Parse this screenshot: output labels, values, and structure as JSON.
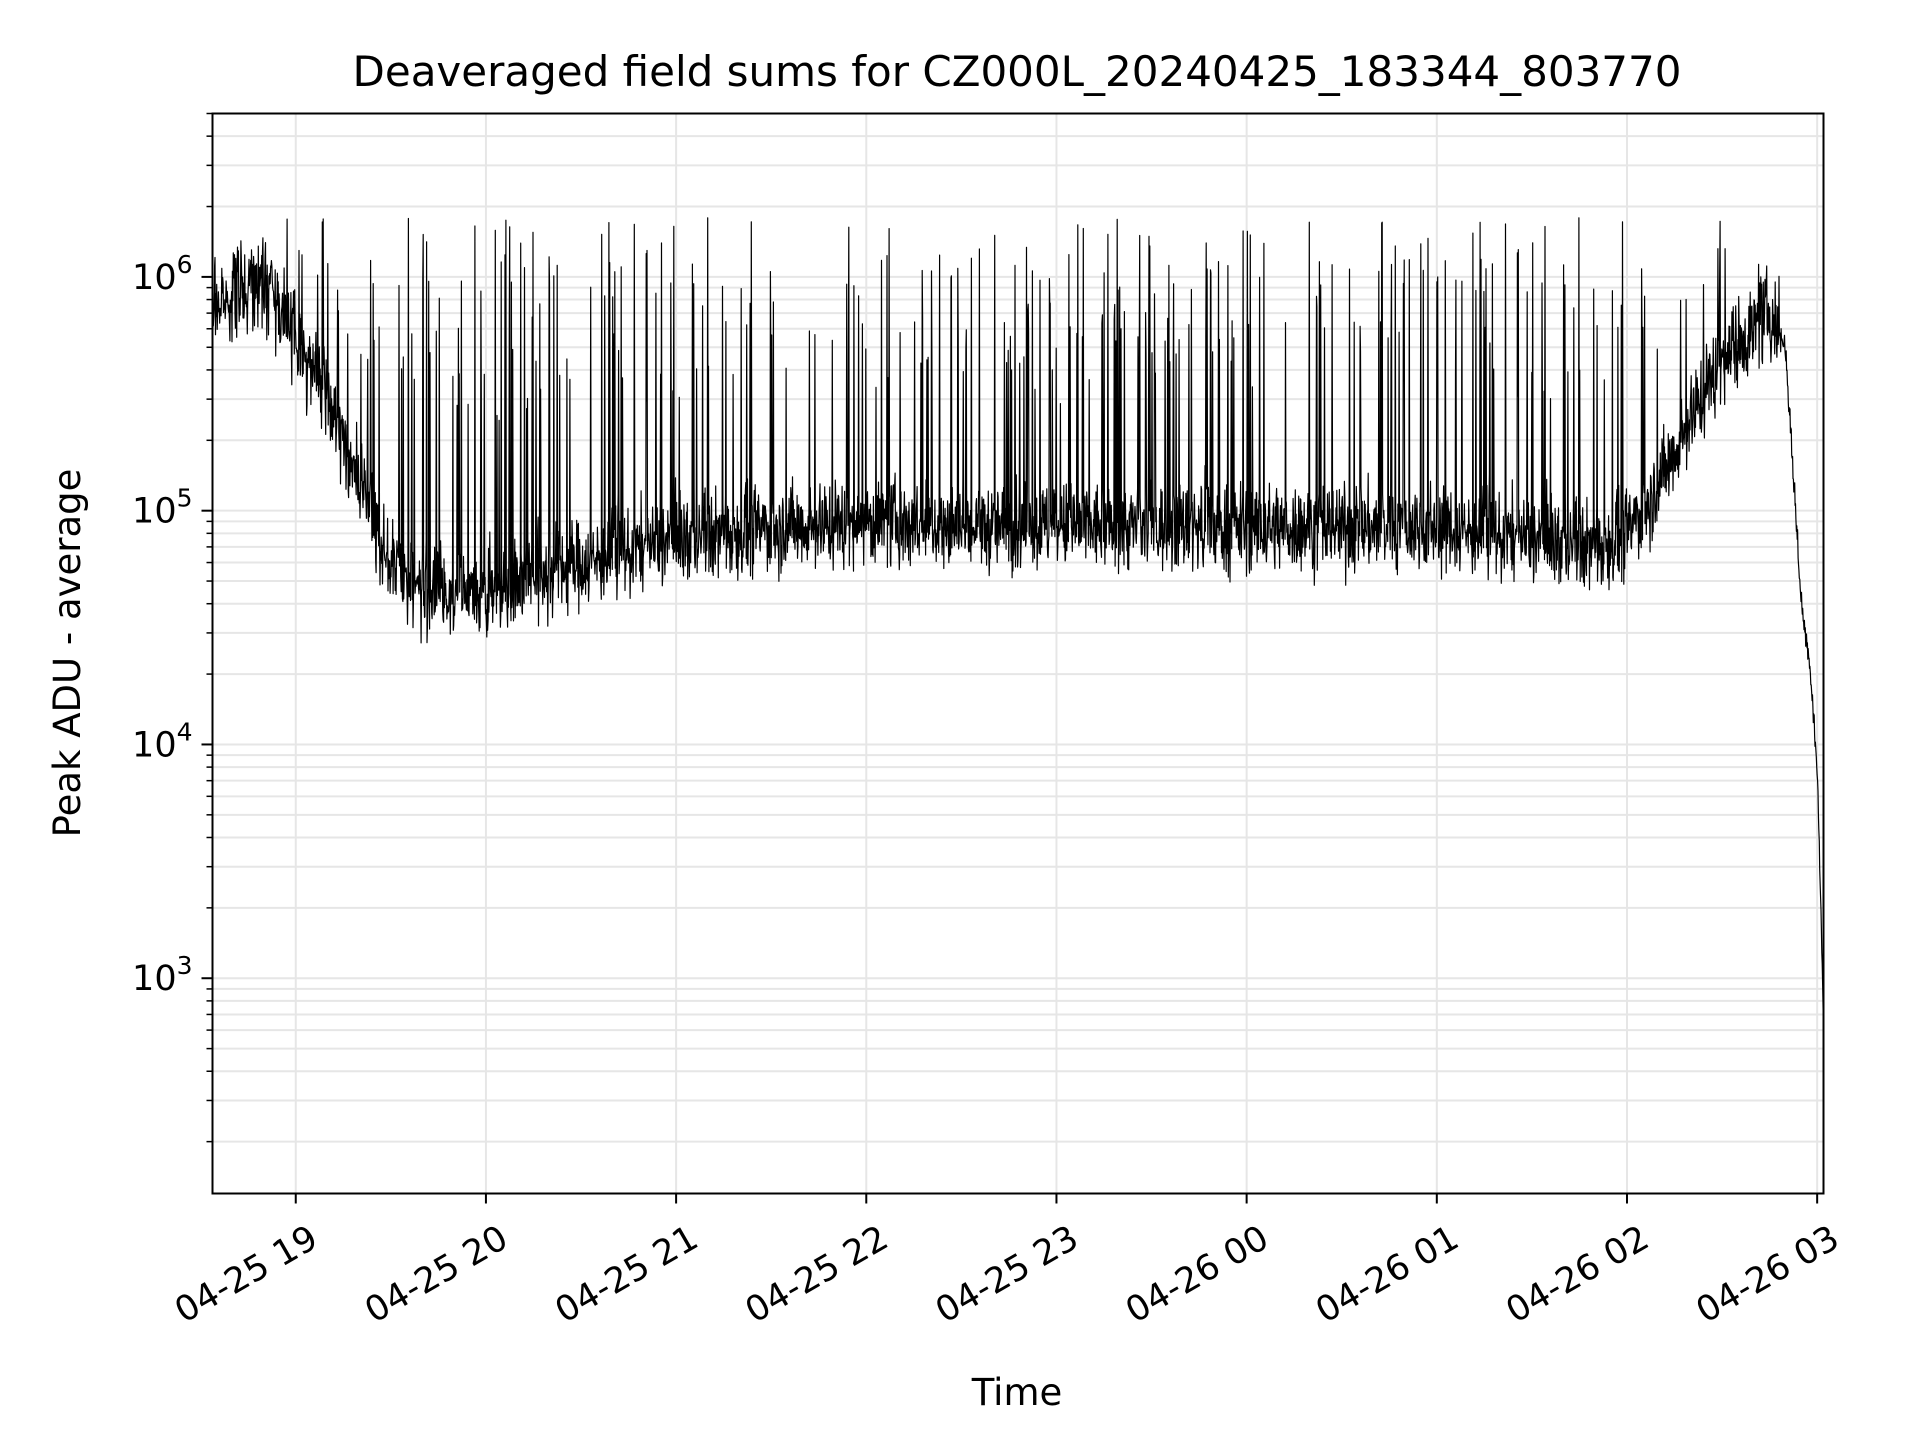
{
  "chart_data": {
    "type": "line",
    "title": "Deaveraged field sums for CZ000L_20240425_183344_803770",
    "xlabel": "Time",
    "ylabel": "Peak ADU - average",
    "x_axis_type": "datetime",
    "x_tick_format": "MM-DD HH",
    "x_ticks": [
      "04-25 19",
      "04-25 20",
      "04-25 21",
      "04-25 22",
      "04-25 23",
      "04-26 00",
      "04-26 01",
      "04-26 02",
      "04-26 03"
    ],
    "y_scale": "log",
    "y_ticks": [
      {
        "base": "10",
        "exp": "3",
        "value": 1000
      },
      {
        "base": "10",
        "exp": "4",
        "value": 10000
      },
      {
        "base": "10",
        "exp": "5",
        "value": 100000
      },
      {
        "base": "10",
        "exp": "6",
        "value": 1000000
      }
    ],
    "xlim": [
      "2024-04-25 18:33:44",
      "2024-04-26 03:02:00"
    ],
    "ylim": [
      120,
      5000000
    ],
    "grid": true,
    "legend": "none",
    "line_color": "#000000",
    "grid_color": "#e6e6e6",
    "series": [
      {
        "x": [
          "2024-04-25 18:33:44",
          "2024-04-25 18:40",
          "2024-04-25 18:50",
          "2024-04-25 19:00",
          "2024-04-25 19:10",
          "2024-04-25 19:20",
          "2024-04-25 19:30",
          "2024-04-25 19:40",
          "2024-04-25 20:00",
          "2024-04-25 20:30",
          "2024-04-25 21:00",
          "2024-04-25 21:30",
          "2024-04-25 22:00",
          "2024-04-25 22:30",
          "2024-04-25 23:00",
          "2024-04-25 23:30",
          "2024-04-26 00:00",
          "2024-04-26 00:30",
          "2024-04-26 01:00",
          "2024-04-26 01:30",
          "2024-04-26 01:50",
          "2024-04-26 02:00",
          "2024-04-26 02:10",
          "2024-04-26 02:20",
          "2024-04-26 02:30",
          "2024-04-26 02:40",
          "2024-04-26 02:45",
          "2024-04-26 02:50",
          "2024-04-26 02:55",
          "2024-04-26 02:58",
          "2024-04-26 03:00",
          "2024-04-26 03:01",
          "2024-04-26 03:02"
        ],
        "y": [
          750000,
          850000,
          1000000,
          550000,
          300000,
          130000,
          60000,
          45000,
          45000,
          60000,
          75000,
          85000,
          90000,
          85000,
          85000,
          85000,
          85000,
          85000,
          85000,
          75000,
          70000,
          80000,
          130000,
          250000,
          450000,
          600000,
          700000,
          500000,
          40000,
          20000,
          8000,
          2500,
          600
        ],
        "spike_peak": 1800000
      }
    ]
  }
}
